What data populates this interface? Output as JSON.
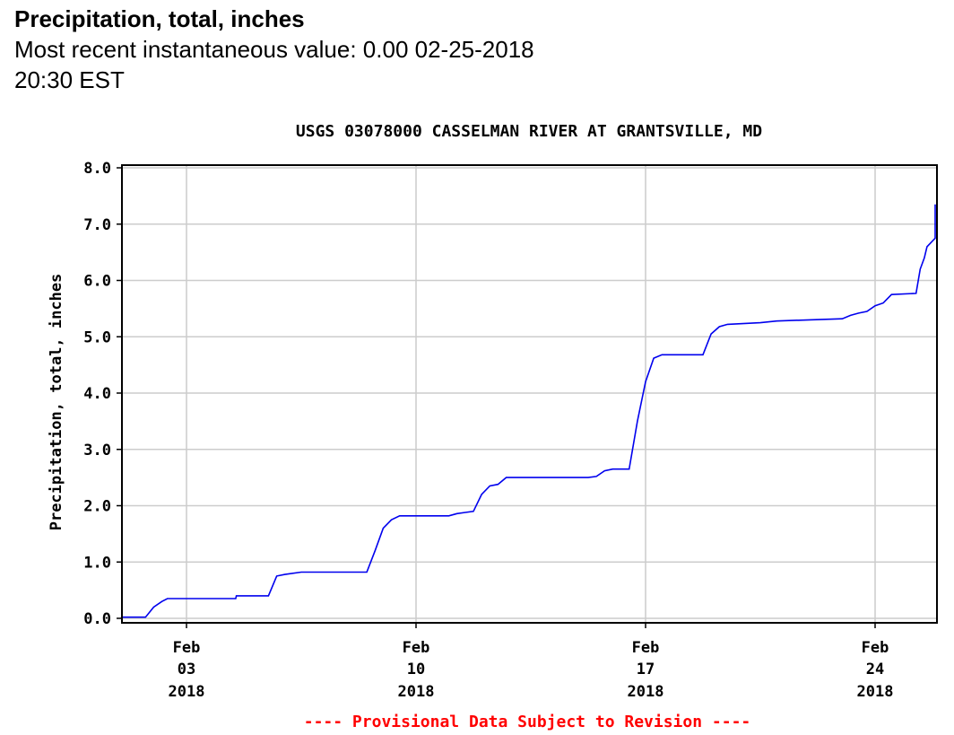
{
  "header": {
    "title": "Precipitation, total, inches",
    "subtitle_label": "Most recent instantaneous value:",
    "subtitle_value": "0.00",
    "subtitle_datetime": "02-25-2018   20:30 EST"
  },
  "chart_data": {
    "type": "line",
    "title": "USGS 03078000 CASSELMAN RIVER AT GRANTSVILLE, MD",
    "ylabel": "Precipitation, total, inches",
    "xlabel": "",
    "ylim": [
      0,
      8
    ],
    "yticks": [
      "0.0",
      "1.0",
      "2.0",
      "3.0",
      "4.0",
      "5.0",
      "6.0",
      "7.0",
      "8.0"
    ],
    "xlim": [
      "2018-02-01",
      "2018-02-26"
    ],
    "xticks": [
      {
        "date": "2018-02-03",
        "month": "Feb",
        "day": "03",
        "year": "2018"
      },
      {
        "date": "2018-02-10",
        "month": "Feb",
        "day": "10",
        "year": "2018"
      },
      {
        "date": "2018-02-17",
        "month": "Feb",
        "day": "17",
        "year": "2018"
      },
      {
        "date": "2018-02-24",
        "month": "Feb",
        "day": "24",
        "year": "2018"
      }
    ],
    "grid": true,
    "line_color": "#0000ee",
    "series": [
      {
        "points": [
          [
            "2018-02-01T00:00",
            0.02
          ],
          [
            "2018-02-01T18:00",
            0.02
          ],
          [
            "2018-02-02T00:00",
            0.2
          ],
          [
            "2018-02-02T06:00",
            0.3
          ],
          [
            "2018-02-02T10:00",
            0.35
          ],
          [
            "2018-02-04T12:00",
            0.35
          ],
          [
            "2018-02-04T12:30",
            0.4
          ],
          [
            "2018-02-05T12:00",
            0.4
          ],
          [
            "2018-02-05T18:00",
            0.75
          ],
          [
            "2018-02-06T00:00",
            0.78
          ],
          [
            "2018-02-06T12:00",
            0.82
          ],
          [
            "2018-02-08T12:00",
            0.82
          ],
          [
            "2018-02-08T18:00",
            1.2
          ],
          [
            "2018-02-09T00:00",
            1.6
          ],
          [
            "2018-02-09T06:00",
            1.75
          ],
          [
            "2018-02-09T12:00",
            1.82
          ],
          [
            "2018-02-11T00:00",
            1.82
          ],
          [
            "2018-02-11T06:00",
            1.86
          ],
          [
            "2018-02-11T12:00",
            1.88
          ],
          [
            "2018-02-11T18:00",
            1.9
          ],
          [
            "2018-02-12T00:00",
            2.2
          ],
          [
            "2018-02-12T06:00",
            2.35
          ],
          [
            "2018-02-12T12:00",
            2.38
          ],
          [
            "2018-02-12T18:00",
            2.5
          ],
          [
            "2018-02-15T06:00",
            2.5
          ],
          [
            "2018-02-15T12:00",
            2.52
          ],
          [
            "2018-02-15T18:00",
            2.62
          ],
          [
            "2018-02-16T00:00",
            2.65
          ],
          [
            "2018-02-16T12:00",
            2.65
          ],
          [
            "2018-02-16T18:00",
            3.5
          ],
          [
            "2018-02-17T00:00",
            4.2
          ],
          [
            "2018-02-17T06:00",
            4.62
          ],
          [
            "2018-02-17T12:00",
            4.68
          ],
          [
            "2018-02-18T18:00",
            4.68
          ],
          [
            "2018-02-19T00:00",
            5.05
          ],
          [
            "2018-02-19T06:00",
            5.18
          ],
          [
            "2018-02-19T12:00",
            5.22
          ],
          [
            "2018-02-20T12:00",
            5.25
          ],
          [
            "2018-02-21T00:00",
            5.28
          ],
          [
            "2018-02-22T00:00",
            5.3
          ],
          [
            "2018-02-23T00:00",
            5.32
          ],
          [
            "2018-02-23T06:00",
            5.38
          ],
          [
            "2018-02-23T12:00",
            5.42
          ],
          [
            "2018-02-23T18:00",
            5.45
          ],
          [
            "2018-02-24T00:00",
            5.55
          ],
          [
            "2018-02-24T06:00",
            5.6
          ],
          [
            "2018-02-24T12:00",
            5.75
          ],
          [
            "2018-02-25T06:00",
            5.77
          ],
          [
            "2018-02-25T09:00",
            6.2
          ],
          [
            "2018-02-25T12:00",
            6.4
          ],
          [
            "2018-02-25T14:00",
            6.6
          ],
          [
            "2018-02-25T18:00",
            6.7
          ],
          [
            "2018-02-26T00:00",
            6.75
          ],
          [
            "2018-02-26T06:00",
            7.1
          ],
          [
            "2018-02-26T12:00",
            7.3
          ],
          [
            "2018-02-26T18:00",
            7.35
          ],
          [
            "2018-02-27T12:00",
            7.35
          ]
        ]
      }
    ],
    "footer_note": "---- Provisional Data Subject to Revision ----",
    "footer_color": "#ff0000"
  }
}
